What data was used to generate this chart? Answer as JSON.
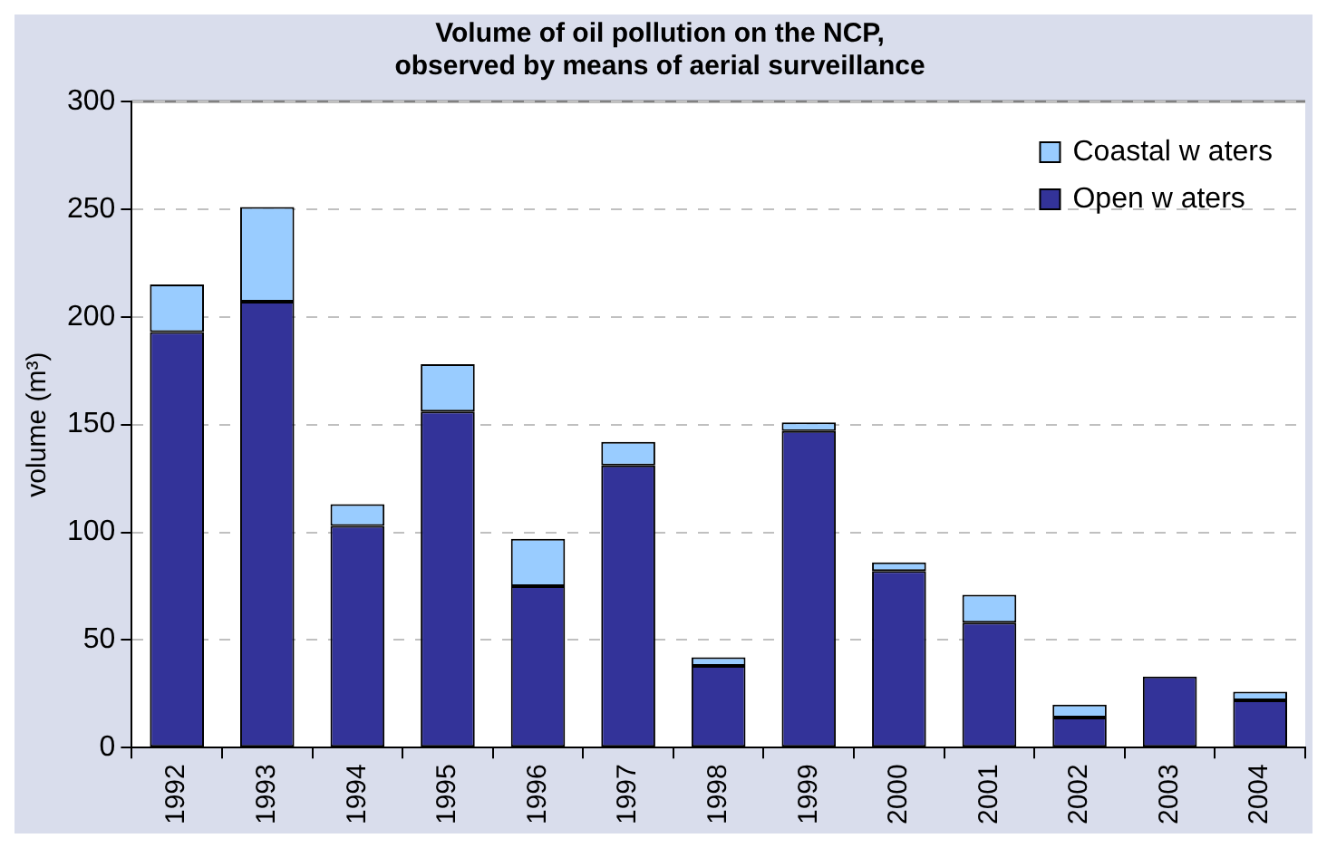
{
  "chart_data": {
    "type": "bar",
    "title": "Volume of oil pollution on the NCP,\nobserved by means of aerial surveillance",
    "ylabel": "volume (m³)",
    "categories": [
      "1992",
      "1993",
      "1994",
      "1995",
      "1996",
      "1997",
      "1998",
      "1999",
      "2000",
      "2001",
      "2002",
      "2003",
      "2004"
    ],
    "series": [
      {
        "name": "Open w aters",
        "color": "#333399",
        "values": [
          193,
          207,
          103,
          156,
          75,
          131,
          38,
          147,
          82,
          58,
          14,
          33,
          22
        ]
      },
      {
        "name": "Coastal w aters",
        "color": "#99ccff",
        "values": [
          22,
          44,
          10,
          22,
          22,
          11,
          4,
          4,
          4,
          13,
          6,
          0,
          4
        ]
      }
    ],
    "stacked": true,
    "ylim": [
      0,
      300
    ],
    "yticks": [
      0,
      50,
      100,
      150,
      200,
      250,
      300
    ],
    "grid": "y",
    "legend": "top right"
  }
}
